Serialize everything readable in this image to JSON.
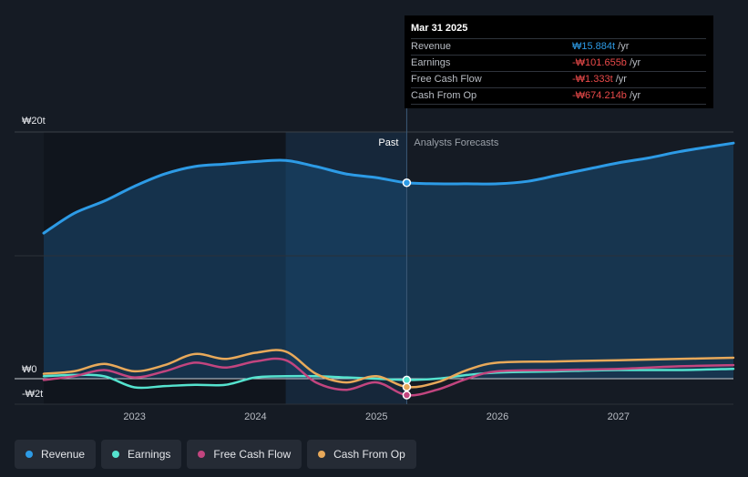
{
  "colors": {
    "revenue": "#2d9be6",
    "earnings": "#55e3cf",
    "free_cash_flow": "#c2457f",
    "cash_from_op": "#e8a95a",
    "negative_value": "#ea4a4a",
    "positive_value": "#2d9be6"
  },
  "tooltip": {
    "date": "Mar 31 2025",
    "rows": [
      {
        "label": "Revenue",
        "value": "₩15.884t",
        "unit": "/yr",
        "sign": "positive"
      },
      {
        "label": "Earnings",
        "value": "-₩101.655b",
        "unit": "/yr",
        "sign": "negative"
      },
      {
        "label": "Free Cash Flow",
        "value": "-₩1.333t",
        "unit": "/yr",
        "sign": "negative"
      },
      {
        "label": "Cash From Op",
        "value": "-₩674.214b",
        "unit": "/yr",
        "sign": "negative"
      }
    ]
  },
  "markers": {
    "past": "Past",
    "forecast": "Analysts Forecasts"
  },
  "legend": [
    {
      "label": "Revenue",
      "color": "#2d9be6"
    },
    {
      "label": "Earnings",
      "color": "#55e3cf"
    },
    {
      "label": "Free Cash Flow",
      "color": "#c2457f"
    },
    {
      "label": "Cash From Op",
      "color": "#e8a95a"
    }
  ],
  "chart_data": {
    "type": "line",
    "y_unit": "KRW trillion",
    "y_tick_labels": [
      "₩20t",
      "₩0",
      "-₩2t"
    ],
    "y_tick_values": [
      20,
      0,
      -2
    ],
    "ylim": [
      -2,
      20
    ],
    "x_tick_labels": [
      "2023",
      "2024",
      "2025",
      "2026",
      "2027"
    ],
    "x_tick_values": [
      2023,
      2024,
      2025,
      2026,
      2027
    ],
    "xlim": [
      2022.25,
      2027.95
    ],
    "highlight_x": 2025.25,
    "shaded_past_x": [
      2024.25,
      2025.25
    ],
    "series": [
      {
        "name": "Revenue",
        "key": "revenue",
        "x": [
          2022.25,
          2022.5,
          2022.75,
          2023.0,
          2023.25,
          2023.5,
          2023.75,
          2024.0,
          2024.25,
          2024.5,
          2024.75,
          2025.0,
          2025.25,
          2025.5,
          2025.75,
          2026.0,
          2026.25,
          2026.5,
          2026.75,
          2027.0,
          2027.25,
          2027.5,
          2027.75,
          2027.95
        ],
        "y": [
          11.8,
          13.4,
          14.4,
          15.6,
          16.6,
          17.2,
          17.4,
          17.6,
          17.7,
          17.2,
          16.6,
          16.3,
          15.884,
          15.8,
          15.8,
          15.8,
          16.0,
          16.5,
          17.0,
          17.5,
          17.9,
          18.4,
          18.8,
          19.1
        ]
      },
      {
        "name": "Earnings",
        "key": "earnings",
        "x": [
          2022.25,
          2022.5,
          2022.75,
          2023.0,
          2023.25,
          2023.5,
          2023.75,
          2024.0,
          2024.25,
          2024.5,
          2024.75,
          2025.0,
          2025.25,
          2025.5,
          2025.75,
          2026.0,
          2026.5,
          2027.0,
          2027.5,
          2027.95
        ],
        "y": [
          0.2,
          0.3,
          0.2,
          -0.7,
          -0.6,
          -0.5,
          -0.5,
          0.1,
          0.2,
          0.2,
          0.1,
          0.0,
          -0.1,
          0.0,
          0.3,
          0.5,
          0.6,
          0.7,
          0.7,
          0.8
        ]
      },
      {
        "name": "Free Cash Flow",
        "key": "free_cash_flow",
        "x": [
          2022.25,
          2022.5,
          2022.75,
          2023.0,
          2023.25,
          2023.5,
          2023.75,
          2024.0,
          2024.25,
          2024.5,
          2024.75,
          2025.0,
          2025.25,
          2025.5,
          2025.75,
          2026.0,
          2026.5,
          2027.0,
          2027.5,
          2027.95
        ],
        "y": [
          -0.1,
          0.2,
          0.7,
          0.1,
          0.6,
          1.3,
          0.9,
          1.4,
          1.5,
          -0.3,
          -0.9,
          -0.3,
          -1.333,
          -0.9,
          0.0,
          0.6,
          0.7,
          0.8,
          1.0,
          1.1
        ]
      },
      {
        "name": "Cash From Op",
        "key": "cash_from_op",
        "x": [
          2022.25,
          2022.5,
          2022.75,
          2023.0,
          2023.25,
          2023.5,
          2023.75,
          2024.0,
          2024.25,
          2024.5,
          2024.75,
          2025.0,
          2025.25,
          2025.5,
          2025.75,
          2026.0,
          2026.5,
          2027.0,
          2027.5,
          2027.95
        ],
        "y": [
          0.4,
          0.6,
          1.2,
          0.6,
          1.1,
          2.0,
          1.6,
          2.1,
          2.2,
          0.4,
          -0.3,
          0.2,
          -0.674,
          -0.3,
          0.7,
          1.3,
          1.4,
          1.5,
          1.6,
          1.7
        ]
      }
    ]
  }
}
